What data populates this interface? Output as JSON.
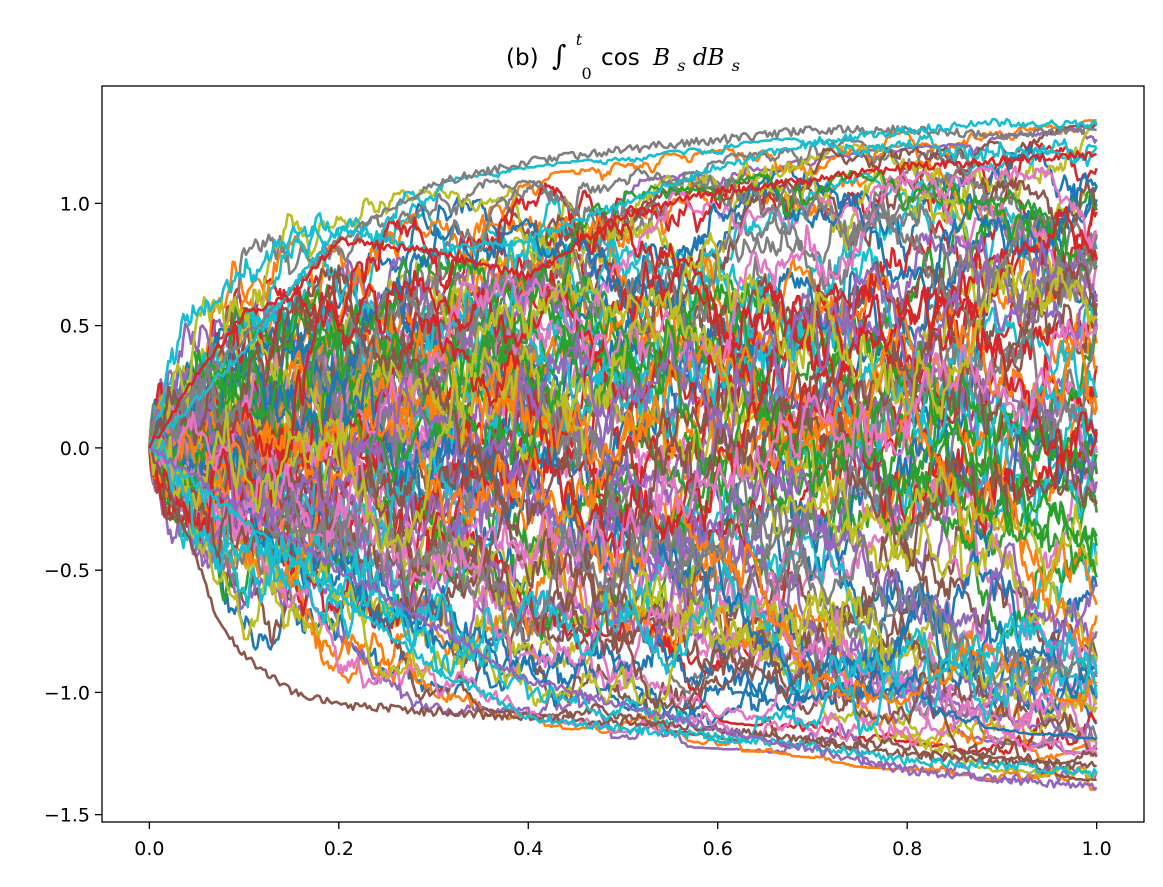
{
  "chart_data": {
    "type": "line",
    "title": {
      "prefix": "(b)",
      "integral_symbol": "∫",
      "lower_limit": "0",
      "upper_limit": "t",
      "func": "cos",
      "var_b1": "B",
      "sub1": "s",
      "var_d": "dB",
      "sub2": "s"
    },
    "xlabel": "",
    "ylabel": "",
    "xlim": [
      -0.05,
      1.05
    ],
    "ylim": [
      -1.53,
      1.48
    ],
    "x_ticks": [
      {
        "value": 0.0,
        "label": "0.0"
      },
      {
        "value": 0.2,
        "label": "0.2"
      },
      {
        "value": 0.4,
        "label": "0.4"
      },
      {
        "value": 0.6,
        "label": "0.6"
      },
      {
        "value": 0.8,
        "label": "0.8"
      },
      {
        "value": 1.0,
        "label": "1.0"
      }
    ],
    "y_ticks": [
      {
        "value": 1.0,
        "label": "1.0"
      },
      {
        "value": 0.5,
        "label": "0.5"
      },
      {
        "value": 0.0,
        "label": "0.0"
      },
      {
        "value": -0.5,
        "label": "−0.5"
      },
      {
        "value": -1.0,
        "label": "−1.0"
      },
      {
        "value": -1.5,
        "label": "−1.5"
      }
    ],
    "grid": false,
    "legend": "none",
    "palette": [
      "#1f77b4",
      "#ff7f0e",
      "#2ca02c",
      "#d62728",
      "#9467bd",
      "#8c564b",
      "#e377c2",
      "#7f7f7f",
      "#bcbd22",
      "#17becf"
    ],
    "num_paths": 100,
    "x_start": 0.0,
    "x_end": 1.0,
    "y_start": 0.0,
    "terminal_range": [
      -1.4,
      1.34
    ],
    "series": [
      {
        "color": "#7f7f7f",
        "x": [
          0.0,
          0.05,
          0.1,
          0.2,
          0.3,
          0.4,
          0.5,
          0.6,
          0.7,
          0.8,
          0.9,
          1.0
        ],
        "values": [
          0.0,
          0.25,
          0.45,
          0.85,
          1.08,
          1.17,
          1.22,
          1.26,
          1.3,
          1.3,
          1.28,
          1.3
        ]
      },
      {
        "color": "#8c564b",
        "x": [
          0.0,
          0.05,
          0.07,
          0.1,
          0.15,
          0.2,
          0.3,
          0.4,
          0.5,
          0.6,
          0.7,
          0.8,
          0.9,
          1.0
        ],
        "values": [
          0.0,
          -0.45,
          -0.68,
          -0.85,
          -1.0,
          -1.05,
          -1.08,
          -1.1,
          -1.12,
          -1.15,
          -1.2,
          -1.25,
          -1.28,
          -1.3
        ]
      },
      {
        "color": "#17becf",
        "x": [
          0.0,
          0.1,
          0.2,
          0.3,
          0.4,
          0.5,
          0.6,
          0.7,
          0.8,
          0.9,
          1.0
        ],
        "values": [
          0.0,
          0.4,
          0.9,
          0.8,
          0.85,
          1.0,
          1.15,
          1.25,
          1.3,
          1.33,
          1.32
        ]
      },
      {
        "color": "#17becf",
        "x": [
          0.0,
          0.1,
          0.2,
          0.3,
          0.4,
          0.5,
          0.6,
          0.7,
          0.8,
          0.9,
          1.0
        ],
        "values": [
          0.0,
          -0.3,
          -0.6,
          -0.9,
          -1.1,
          -1.15,
          -1.18,
          -1.22,
          -1.28,
          -1.3,
          -1.33
        ]
      },
      {
        "color": "#9467bd",
        "x": [
          0.0,
          0.2,
          0.4,
          0.6,
          0.8,
          1.0
        ],
        "values": [
          0.0,
          -0.5,
          -0.95,
          -1.15,
          -1.32,
          -1.39
        ]
      },
      {
        "color": "#d62728",
        "x": [
          0.0,
          0.05,
          0.1,
          0.15,
          0.2,
          0.3,
          0.4,
          0.5,
          0.6,
          0.8,
          1.0
        ],
        "values": [
          0.0,
          0.3,
          0.55,
          0.62,
          0.85,
          0.8,
          0.7,
          0.95,
          1.05,
          1.15,
          1.2
        ]
      }
    ]
  }
}
